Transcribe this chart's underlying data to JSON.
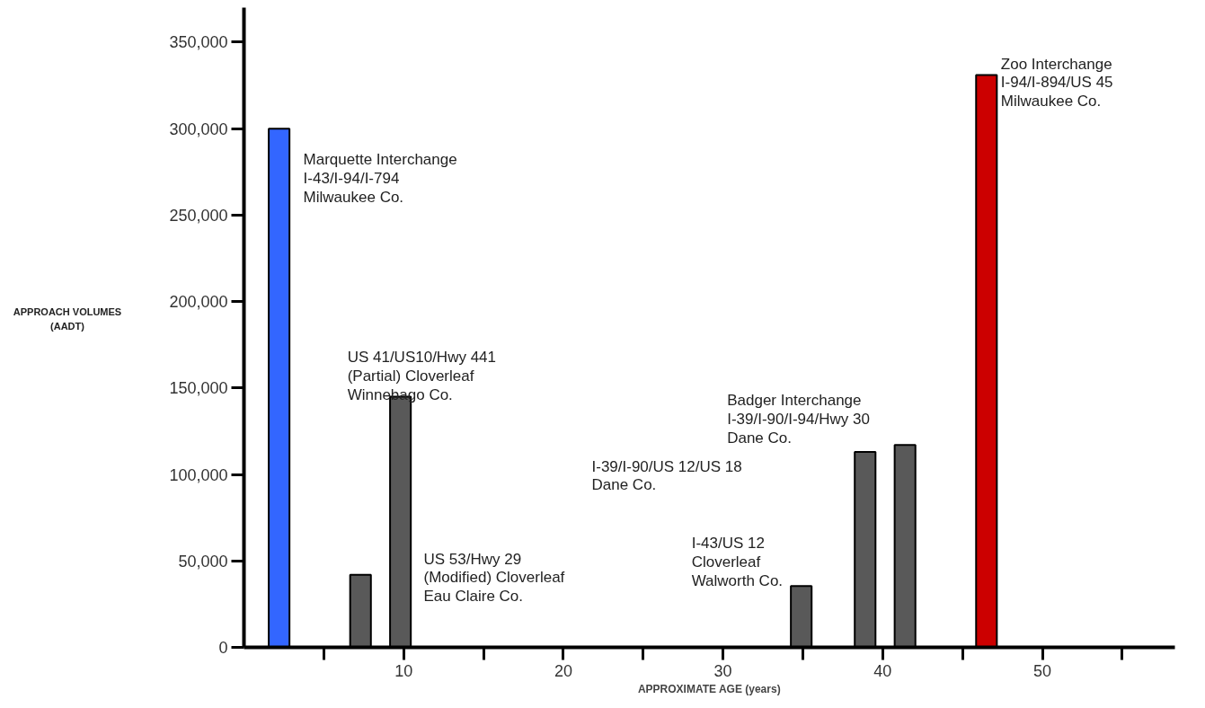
{
  "chart_data": {
    "type": "bar",
    "xlabel": "APPROXIMATE AGE (years)",
    "x": [
      2.2,
      7.3,
      9.8,
      34.9,
      38.9,
      41.4,
      46.5
    ],
    "values": [
      300000,
      42000,
      145000,
      35500,
      113000,
      117000,
      331000
    ],
    "colors": [
      "#3366ff",
      "#595959",
      "#595959",
      "#595959",
      "#595959",
      "#595959",
      "#cc0000"
    ],
    "xlim": [
      0,
      58.3
    ],
    "ylim": [
      0,
      370000
    ],
    "xticks": [
      {
        "value": 5,
        "label": null
      },
      {
        "value": 10,
        "label": "10"
      },
      {
        "value": 15,
        "label": null
      },
      {
        "value": 20,
        "label": "20"
      },
      {
        "value": 25,
        "label": null
      },
      {
        "value": 30,
        "label": "30"
      },
      {
        "value": 35,
        "label": null
      },
      {
        "value": 40,
        "label": "40"
      },
      {
        "value": 45,
        "label": null
      },
      {
        "value": 50,
        "label": "50"
      },
      {
        "value": 55,
        "label": null
      }
    ],
    "yticks": [
      0,
      {
        "value": 50000,
        "label": "50,000"
      },
      {
        "value": 100000,
        "label": "100,000"
      },
      {
        "value": 150000,
        "label": "150,000"
      },
      {
        "value": 200000,
        "label": "200,000"
      },
      {
        "value": 250000,
        "label": "250,000"
      },
      {
        "value": 300000,
        "label": "300,000"
      },
      {
        "value": 350000,
        "label": "350,000"
      }
    ],
    "grid": false,
    "annotations": [
      {
        "text": "Marquette Interchange\nI-43/I-94/I-794\nMilwaukee Co.",
        "x": 2.2,
        "y": 300000
      },
      {
        "text": "US 41/US10/Hwy 441\n(Partial) Cloverleaf\nWinnebago Co.",
        "x": 9.8,
        "y": 145000
      },
      "US 53/Hwy 29\n(Modified) Cloverleaf\nEau Claire Co.",
      {
        "text": "I-43/US 12\nCloverleaf\nWalworth Co.",
        "x": 34.9,
        "y": 35500
      },
      "I-39/I-90/US 12/US 18\nDane Co.",
      {
        "text": "Badger Interchange\nI-39/I-90/I-94/Hwy 30\nDane Co.",
        "x": 41.4,
        "y": 117000
      },
      {
        "text": "Zoo Interchange\nI-94/I-894/US 45\nMilwaukee Co.",
        "x": 46.5,
        "y": 331000
      },
      "APPROACH VOLUMES\n(AADT)"
    ]
  }
}
